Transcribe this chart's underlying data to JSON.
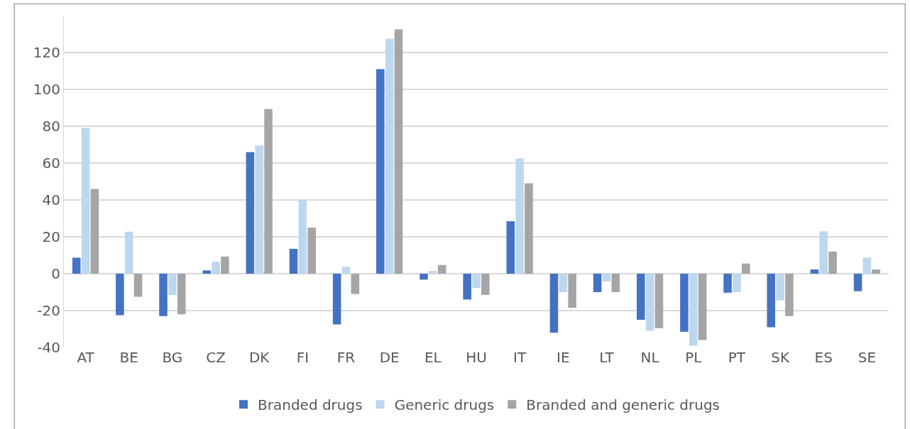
{
  "chart_data": {
    "type": "bar",
    "categories": [
      "AT",
      "BE",
      "BG",
      "CZ",
      "DK",
      "FI",
      "FR",
      "DE",
      "EL",
      "HU",
      "IT",
      "IE",
      "LT",
      "NL",
      "PL",
      "PT",
      "SK",
      "ES",
      "SE"
    ],
    "series": [
      {
        "name": "Branded drugs",
        "color": "#4472c4",
        "values": [
          8.7,
          -22.5,
          -23,
          1.8,
          66,
          13.5,
          -27.5,
          111,
          -3.2,
          -14,
          28.5,
          -32,
          -10,
          -25,
          -31.5,
          -10.3,
          -29,
          2.3,
          -9.5
        ]
      },
      {
        "name": "Generic drugs",
        "color": "#bdd7ee",
        "values": [
          79,
          22.8,
          -11.5,
          6.5,
          69.5,
          40,
          3.8,
          127.5,
          1.5,
          -7.7,
          62.5,
          -10,
          -4.2,
          -31,
          -39,
          -10,
          -14.5,
          23,
          8.7
        ]
      },
      {
        "name": "Branded and generic drugs",
        "color": "#a5a5a5",
        "values": [
          46,
          -12.5,
          -22,
          9.3,
          89.3,
          25,
          -11,
          132.5,
          4.7,
          -11.5,
          49,
          -18.5,
          -10,
          -29.5,
          -36,
          5.5,
          -23,
          12,
          2.3
        ]
      }
    ],
    "ylim": [
      -40,
      140
    ],
    "yticks": [
      -40,
      -20,
      0,
      20,
      40,
      60,
      80,
      100,
      120
    ],
    "grid": "y",
    "legend": "bottom"
  }
}
